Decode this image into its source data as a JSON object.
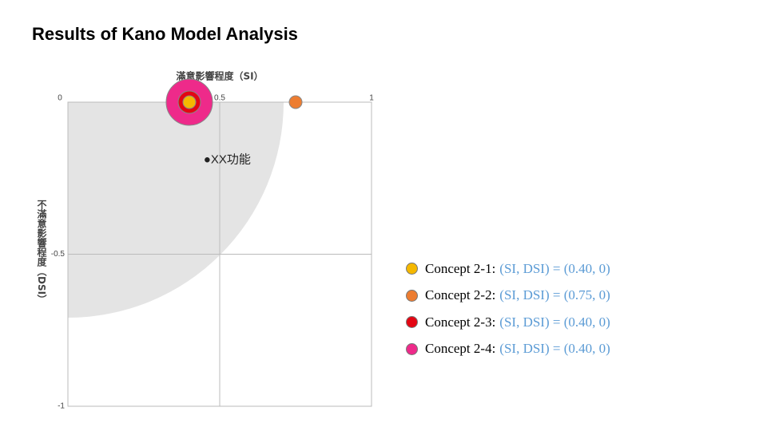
{
  "chart_data": {
    "type": "scatter",
    "title": "Results of Kano Model Analysis",
    "x_label": "滿意影響程度（SI）",
    "y_label": "不滿意影響程度（DSI）",
    "xlim": [
      0,
      1
    ],
    "ylim": [
      -1,
      0
    ],
    "xticks": [
      0,
      0.5,
      1
    ],
    "yticks": [
      -0.5,
      -1
    ],
    "grid": true,
    "annotation": {
      "text": "●XX功能",
      "x": 0.46,
      "y": -0.19
    },
    "series": [
      {
        "name": "Concept 2-1:",
        "color": "#f5b800",
        "x": 0.4,
        "y": 0,
        "label": "(SI, DSI) = (0.40, 0)"
      },
      {
        "name": "Concept 2-2:",
        "color": "#ed7d31",
        "x": 0.75,
        "y": 0,
        "label": "(SI, DSI) = (0.75, 0)"
      },
      {
        "name": "Concept 2-3:",
        "color": "#e30613",
        "x": 0.4,
        "y": 0,
        "label": "(SI, DSI) = (0.40, 0)"
      },
      {
        "name": "Concept 2-4:",
        "color": "#ee2a8a",
        "x": 0.4,
        "y": 0,
        "label": "(SI, DSI) = (0.40, 0)"
      }
    ]
  }
}
